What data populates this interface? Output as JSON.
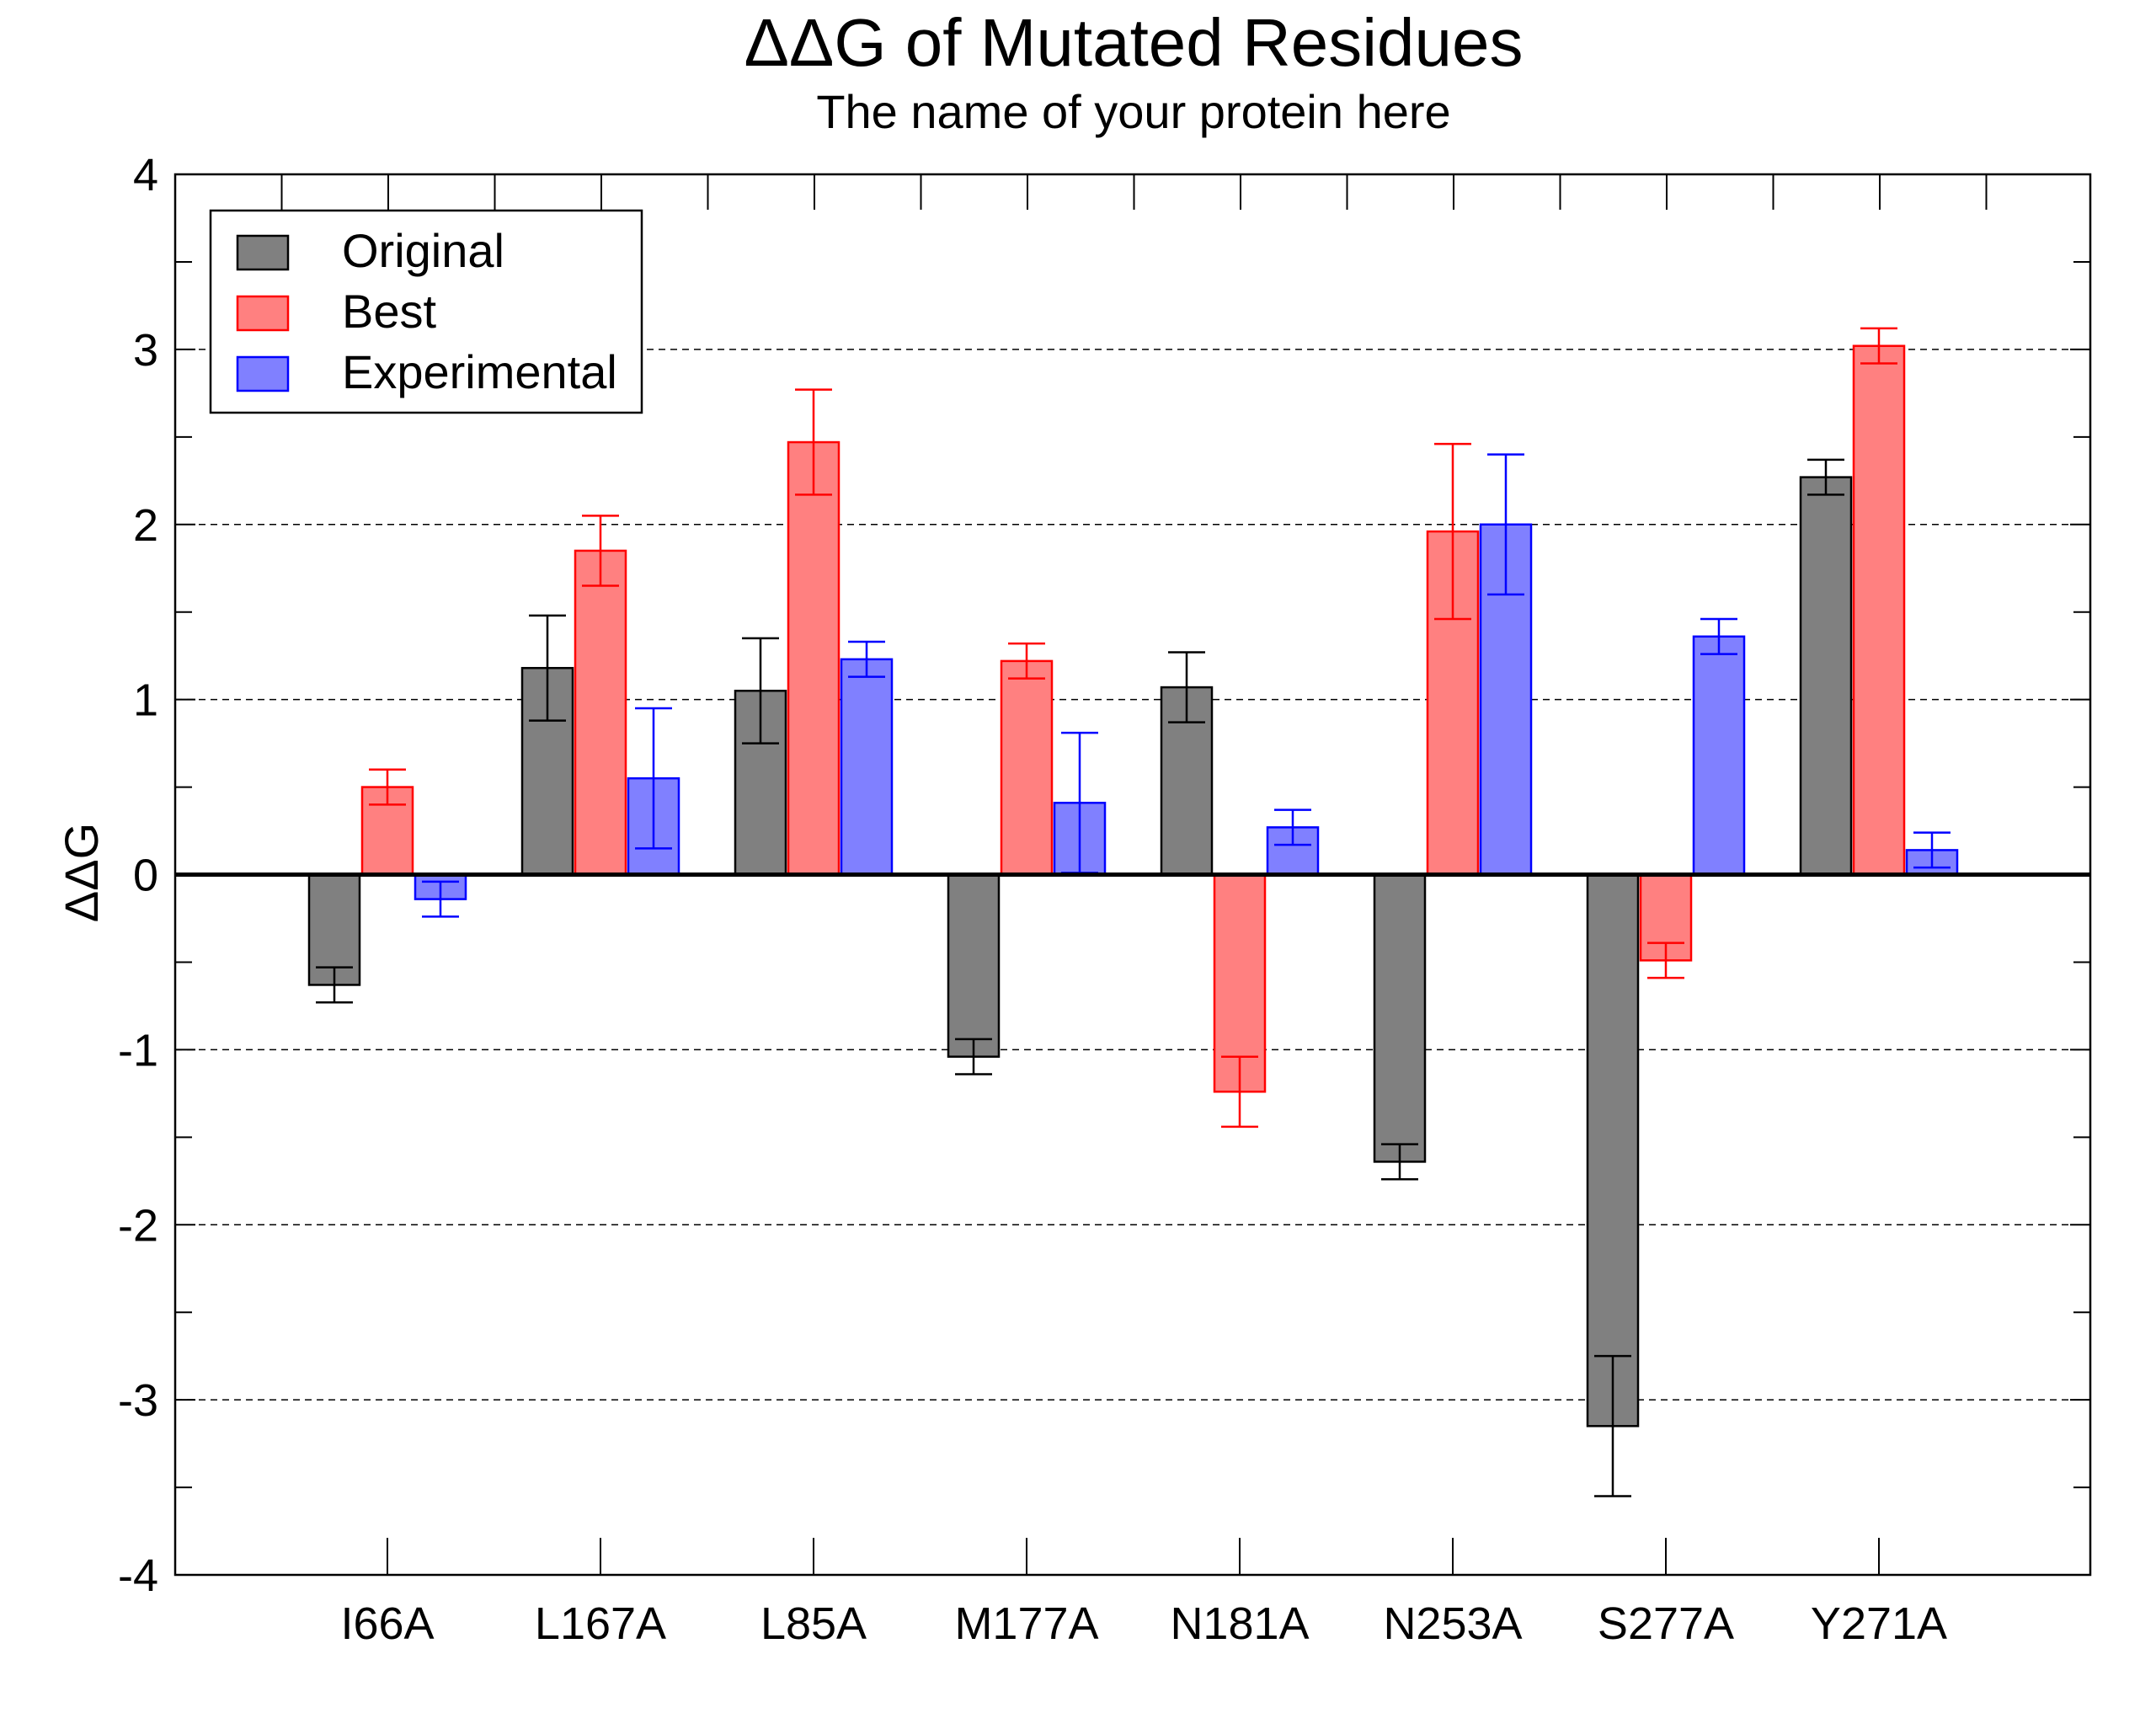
{
  "chart_data": {
    "type": "bar",
    "title": "ΔΔG of Mutated Residues",
    "subtitle": "The name of your protein here",
    "xlabel": "",
    "ylabel": "ΔΔG",
    "ylim": [
      -4,
      4
    ],
    "yticks": [
      "-4",
      "-3",
      "-2",
      "-1",
      "0",
      "1",
      "2",
      "3",
      "4"
    ],
    "grid": "horizontal dashed at integer ticks",
    "legend_position": "top-left",
    "categories": [
      "I66A",
      "L167A",
      "L85A",
      "M177A",
      "N181A",
      "N253A",
      "S277A",
      "Y271A"
    ],
    "series": [
      {
        "name": "Original",
        "fill": "#808080",
        "stroke": "#000000",
        "values": [
          -0.63,
          1.18,
          1.05,
          -1.04,
          1.07,
          -1.64,
          -3.15,
          2.27
        ],
        "errors": [
          0.1,
          0.3,
          0.3,
          0.1,
          0.2,
          0.1,
          0.4,
          0.1
        ]
      },
      {
        "name": "Best",
        "fill": "#ff8080",
        "stroke": "#ff0000",
        "values": [
          0.5,
          1.85,
          2.47,
          1.22,
          -1.24,
          1.96,
          -0.49,
          3.02
        ],
        "errors": [
          0.1,
          0.2,
          0.3,
          0.1,
          0.2,
          0.5,
          0.1,
          0.1
        ]
      },
      {
        "name": "Experimental",
        "fill": "#8080ff",
        "stroke": "#0000ff",
        "values": [
          -0.14,
          0.55,
          1.23,
          0.41,
          0.27,
          2.0,
          1.36,
          0.14
        ],
        "errors": [
          0.1,
          0.4,
          0.1,
          0.4,
          0.1,
          0.4,
          0.1,
          0.1
        ]
      }
    ]
  }
}
